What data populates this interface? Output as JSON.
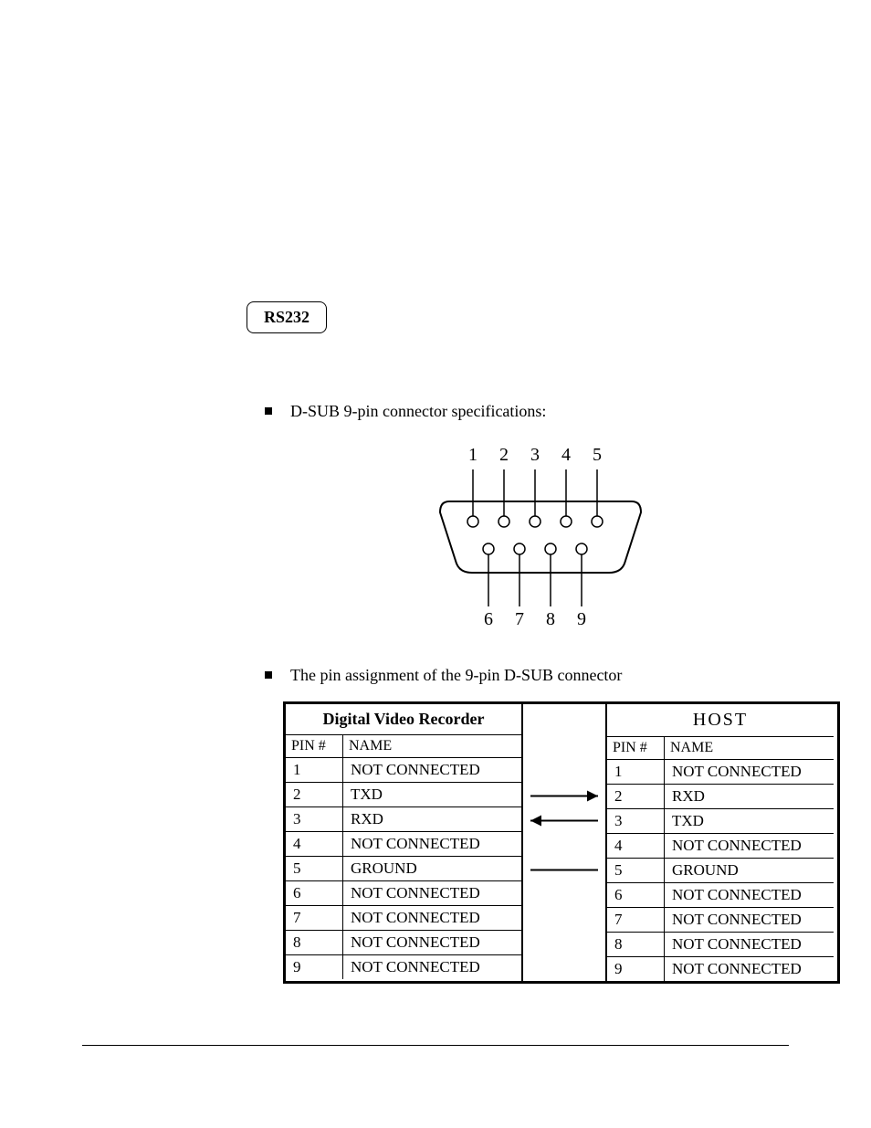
{
  "section_label": "RS232",
  "bullet1": "D-SUB  9-pin connector specifications:",
  "bullet2": "The pin assignment of the 9-pin D-SUB connector",
  "diagram": {
    "top_pins": [
      "1",
      "2",
      "3",
      "4",
      "5"
    ],
    "bottom_pins": [
      "6",
      "7",
      "8",
      "9"
    ],
    "line_color": "#000000",
    "bg": "#ffffff"
  },
  "table": {
    "left_title": "Digital Video Recorder",
    "right_title": "HOST",
    "col_pin": "PIN #",
    "col_name": "NAME",
    "left_rows": [
      {
        "pin": "1",
        "name": "NOT CONNECTED"
      },
      {
        "pin": "2",
        "name": "TXD"
      },
      {
        "pin": "3",
        "name": "RXD"
      },
      {
        "pin": "4",
        "name": "NOT CONNECTED"
      },
      {
        "pin": "5",
        "name": "GROUND"
      },
      {
        "pin": "6",
        "name": "NOT CONNECTED"
      },
      {
        "pin": "7",
        "name": "NOT CONNECTED"
      },
      {
        "pin": "8",
        "name": "NOT CONNECTED"
      },
      {
        "pin": "9",
        "name": "NOT CONNECTED"
      }
    ],
    "right_rows": [
      {
        "pin": "1",
        "name": "NOT CONNECTED"
      },
      {
        "pin": "2",
        "name": "RXD"
      },
      {
        "pin": "3",
        "name": "TXD"
      },
      {
        "pin": "4",
        "name": "NOT CONNECTED"
      },
      {
        "pin": "5",
        "name": "GROUND"
      },
      {
        "pin": "6",
        "name": "NOT CONNECTED"
      },
      {
        "pin": "7",
        "name": "NOT CONNECTED"
      },
      {
        "pin": "8",
        "name": "NOT CONNECTED"
      },
      {
        "pin": "9",
        "name": "NOT CONNECTED"
      }
    ],
    "arrows": [
      {
        "row": 2,
        "dir": "right"
      },
      {
        "row": 3,
        "dir": "left"
      },
      {
        "row": 5,
        "dir": "none"
      }
    ],
    "border_color": "#000000",
    "font_size_pt": 13
  }
}
